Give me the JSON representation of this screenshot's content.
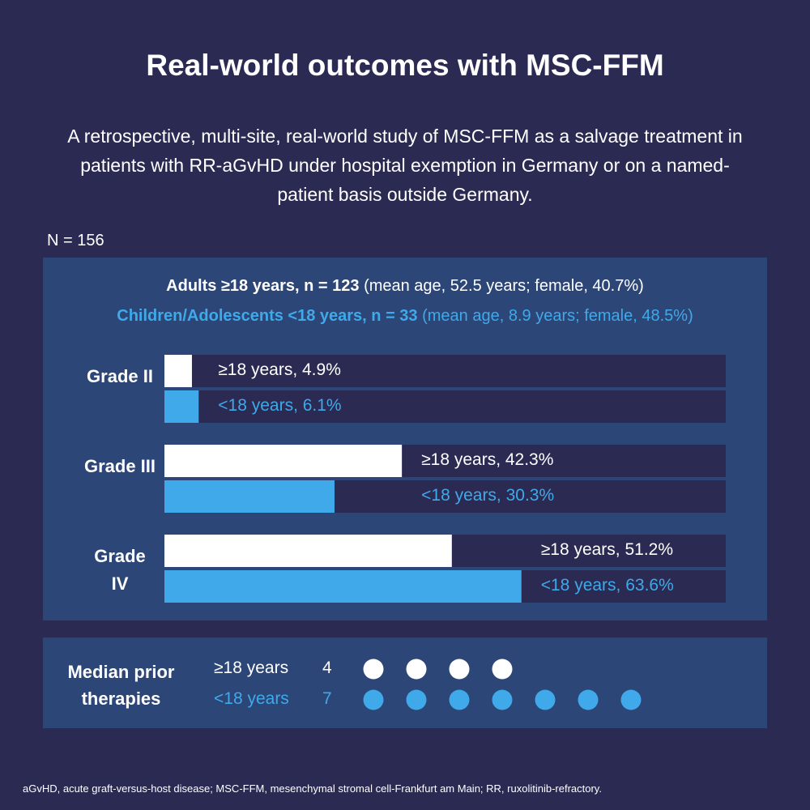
{
  "title": "Real-world outcomes with MSC-FFM",
  "subtitle": "A retrospective, multi-site, real-world study of MSC-FFM as a salvage treatment in patients with RR-aGvHD under hospital exemption in Germany or on a named-patient basis outside Germany.",
  "n_label": "N = 156",
  "cohorts": [
    {
      "name": "Adults ≥18 years, n = 123",
      "detail": "(mean age, 52.5 years; female, 40.7%)"
    },
    {
      "name": "Children/Adolescents <18 years, n = 33",
      "detail": "(mean age, 8.9 years; female, 48.5%)"
    }
  ],
  "chart_data": {
    "type": "bar",
    "orientation": "horizontal",
    "categories": [
      "Grade II",
      "Grade III",
      "Grade IV"
    ],
    "series": [
      {
        "name": "≥18 years",
        "color": "#ffffff",
        "values": [
          4.9,
          42.3,
          51.2
        ],
        "value_labels": [
          "≥18 years, 4.9%",
          "≥18 years, 42.3%",
          "≥18 years, 51.2%"
        ]
      },
      {
        "name": "<18 years",
        "color": "#3fa9ea",
        "values": [
          6.1,
          30.3,
          63.6
        ],
        "value_labels": [
          "<18 years, 6.1%",
          "<18 years, 30.3%",
          "<18 years, 63.6%"
        ]
      }
    ],
    "xlim": [
      0,
      100
    ]
  },
  "prior_therapies": {
    "label": "Median prior therapies",
    "rows": [
      {
        "name": "≥18 years",
        "value": 4,
        "color": "#ffffff"
      },
      {
        "name": "<18 years",
        "value": 7,
        "color": "#3fa9ea"
      }
    ]
  },
  "footnote": "aGvHD, acute graft-versus-host disease; MSC-FFM, mesenchymal stromal cell-Frankfurt am Main; RR, ruxolitinib-refractory."
}
